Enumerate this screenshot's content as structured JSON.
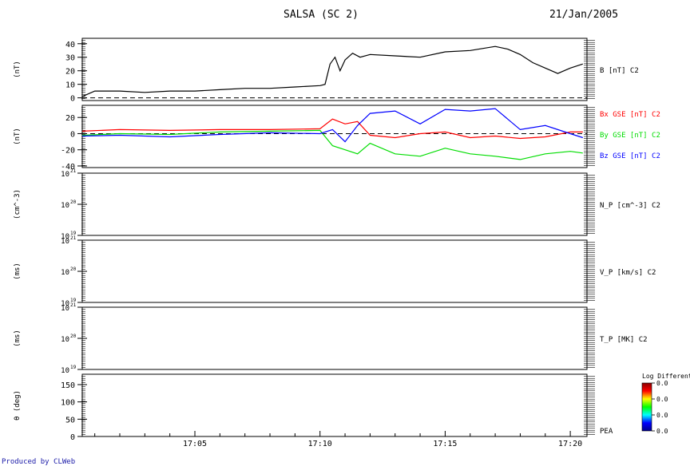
{
  "header": {
    "title": "SALSA (SC 2)",
    "date": "21/Jan/2005"
  },
  "footer": {
    "produced_by": "Produced by CLWeb"
  },
  "colors": {
    "black": "#000000",
    "red": "#ff0000",
    "green": "#00dd00",
    "blue": "#0000ff",
    "footer_blue": "#1a1aa8"
  },
  "x_axis": {
    "range": [
      "17:00:30",
      "17:20:40"
    ],
    "ticks": [
      "17:05",
      "17:10",
      "17:15",
      "17:20"
    ]
  },
  "colorbar": {
    "title": "Log Differenti",
    "tick_labels": [
      "0.0",
      "0.0",
      "0.0",
      "0.0"
    ],
    "colors": [
      "#8b0000",
      "#ff0000",
      "#ffff00",
      "#00ff00",
      "#00ffff",
      "#0000ff",
      "#00008b"
    ]
  },
  "chart_data": [
    {
      "id": "panel-b",
      "type": "line",
      "ylabel": "(nT)",
      "ylim": [
        -2,
        44
      ],
      "yticks": [
        "0",
        "10",
        "20",
        "30",
        "40"
      ],
      "right_labels": [
        {
          "text": "B [nT] C2",
          "color": "#000000"
        }
      ],
      "zero_line": true,
      "series": [
        {
          "name": "B [nT] C2",
          "color": "#000000",
          "x": [
            0.5,
            1,
            2,
            3,
            4,
            5,
            6,
            7,
            8,
            9,
            10,
            10.2,
            10.4,
            10.6,
            10.8,
            11,
            11.3,
            11.6,
            12,
            13,
            14,
            15,
            16,
            17,
            17.5,
            18,
            18.5,
            19,
            19.5,
            20,
            20.5
          ],
          "y": [
            1,
            5,
            5,
            4,
            5,
            5,
            6,
            7,
            7,
            8,
            9,
            10,
            25,
            30,
            20,
            28,
            33,
            30,
            32,
            31,
            30,
            34,
            35,
            38,
            36,
            32,
            26,
            22,
            18,
            22,
            25
          ]
        }
      ]
    },
    {
      "id": "panel-bgse",
      "type": "line",
      "ylabel": "(nT)",
      "ylim": [
        -42,
        35
      ],
      "yticks": [
        "-40",
        "-20",
        "0",
        "20"
      ],
      "right_labels": [
        {
          "text": "Bx GSE [nT] C2",
          "color": "#ff0000"
        },
        {
          "text": "By GSE [nT] C2",
          "color": "#00dd00"
        },
        {
          "text": "Bz GSE [nT] C2",
          "color": "#0000ff"
        }
      ],
      "zero_line": true,
      "series": [
        {
          "name": "Bx GSE [nT] C2",
          "color": "#ff0000",
          "x": [
            0.5,
            2,
            4,
            6,
            8,
            10,
            10.5,
            11,
            11.5,
            12,
            13,
            14,
            15,
            16,
            17,
            18,
            19,
            20,
            20.5
          ],
          "y": [
            3,
            5,
            4,
            5,
            5,
            6,
            18,
            12,
            15,
            -2,
            -5,
            0,
            2,
            -5,
            -3,
            -6,
            -4,
            2,
            2
          ]
        },
        {
          "name": "By GSE [nT] C2",
          "color": "#00dd00",
          "x": [
            0.5,
            2,
            4,
            6,
            8,
            10,
            10.5,
            11,
            11.5,
            12,
            13,
            14,
            15,
            16,
            17,
            18,
            19,
            20,
            20.5
          ],
          "y": [
            -2,
            0,
            -1,
            2,
            3,
            4,
            -15,
            -20,
            -25,
            -12,
            -25,
            -28,
            -18,
            -25,
            -28,
            -32,
            -25,
            -22,
            -24
          ]
        },
        {
          "name": "Bz GSE [nT] C2",
          "color": "#0000ff",
          "x": [
            0.5,
            2,
            4,
            6,
            8,
            10,
            10.5,
            11,
            11.5,
            12,
            13,
            14,
            15,
            16,
            17,
            18,
            19,
            20,
            20.5
          ],
          "y": [
            -3,
            -2,
            -4,
            -1,
            1,
            0,
            5,
            -10,
            10,
            25,
            28,
            12,
            30,
            28,
            31,
            5,
            10,
            0,
            -5
          ]
        }
      ]
    },
    {
      "id": "panel-np",
      "type": "line",
      "ylabel": "(cm^-3)",
      "yscale": "log",
      "ylim": [
        "10^19",
        "10^21"
      ],
      "yticks_mantissa": [
        "10",
        "10",
        "10"
      ],
      "yticks_exp": [
        "21",
        "20",
        "19"
      ],
      "right_labels": [
        {
          "text": "N_P [cm^-3] C2",
          "color": "#000000"
        }
      ],
      "series": []
    },
    {
      "id": "panel-vp",
      "type": "line",
      "ylabel": "(ms)",
      "yscale": "log",
      "ylim": [
        "10^19",
        "10^21"
      ],
      "yticks_mantissa": [
        "10",
        "10",
        "10"
      ],
      "yticks_exp": [
        "21",
        "20",
        "19"
      ],
      "right_labels": [
        {
          "text": "V_P [km/s] C2",
          "color": "#000000"
        }
      ],
      "series": []
    },
    {
      "id": "panel-tp",
      "type": "line",
      "ylabel": "(ms)",
      "yscale": "log",
      "ylim": [
        "10^19",
        "10^21"
      ],
      "yticks_mantissa": [
        "10",
        "10",
        "10"
      ],
      "yticks_exp": [
        "21",
        "20",
        "19"
      ],
      "right_labels": [
        {
          "text": "T_P [MK] C2",
          "color": "#000000"
        }
      ],
      "series": []
    },
    {
      "id": "panel-pea",
      "type": "heatmap",
      "ylabel": "θ (deg)",
      "ylim": [
        0,
        180
      ],
      "yticks": [
        "0",
        "50",
        "100",
        "150"
      ],
      "right_labels": [
        {
          "text": "PEA",
          "color": "#000000"
        }
      ],
      "series": []
    }
  ]
}
